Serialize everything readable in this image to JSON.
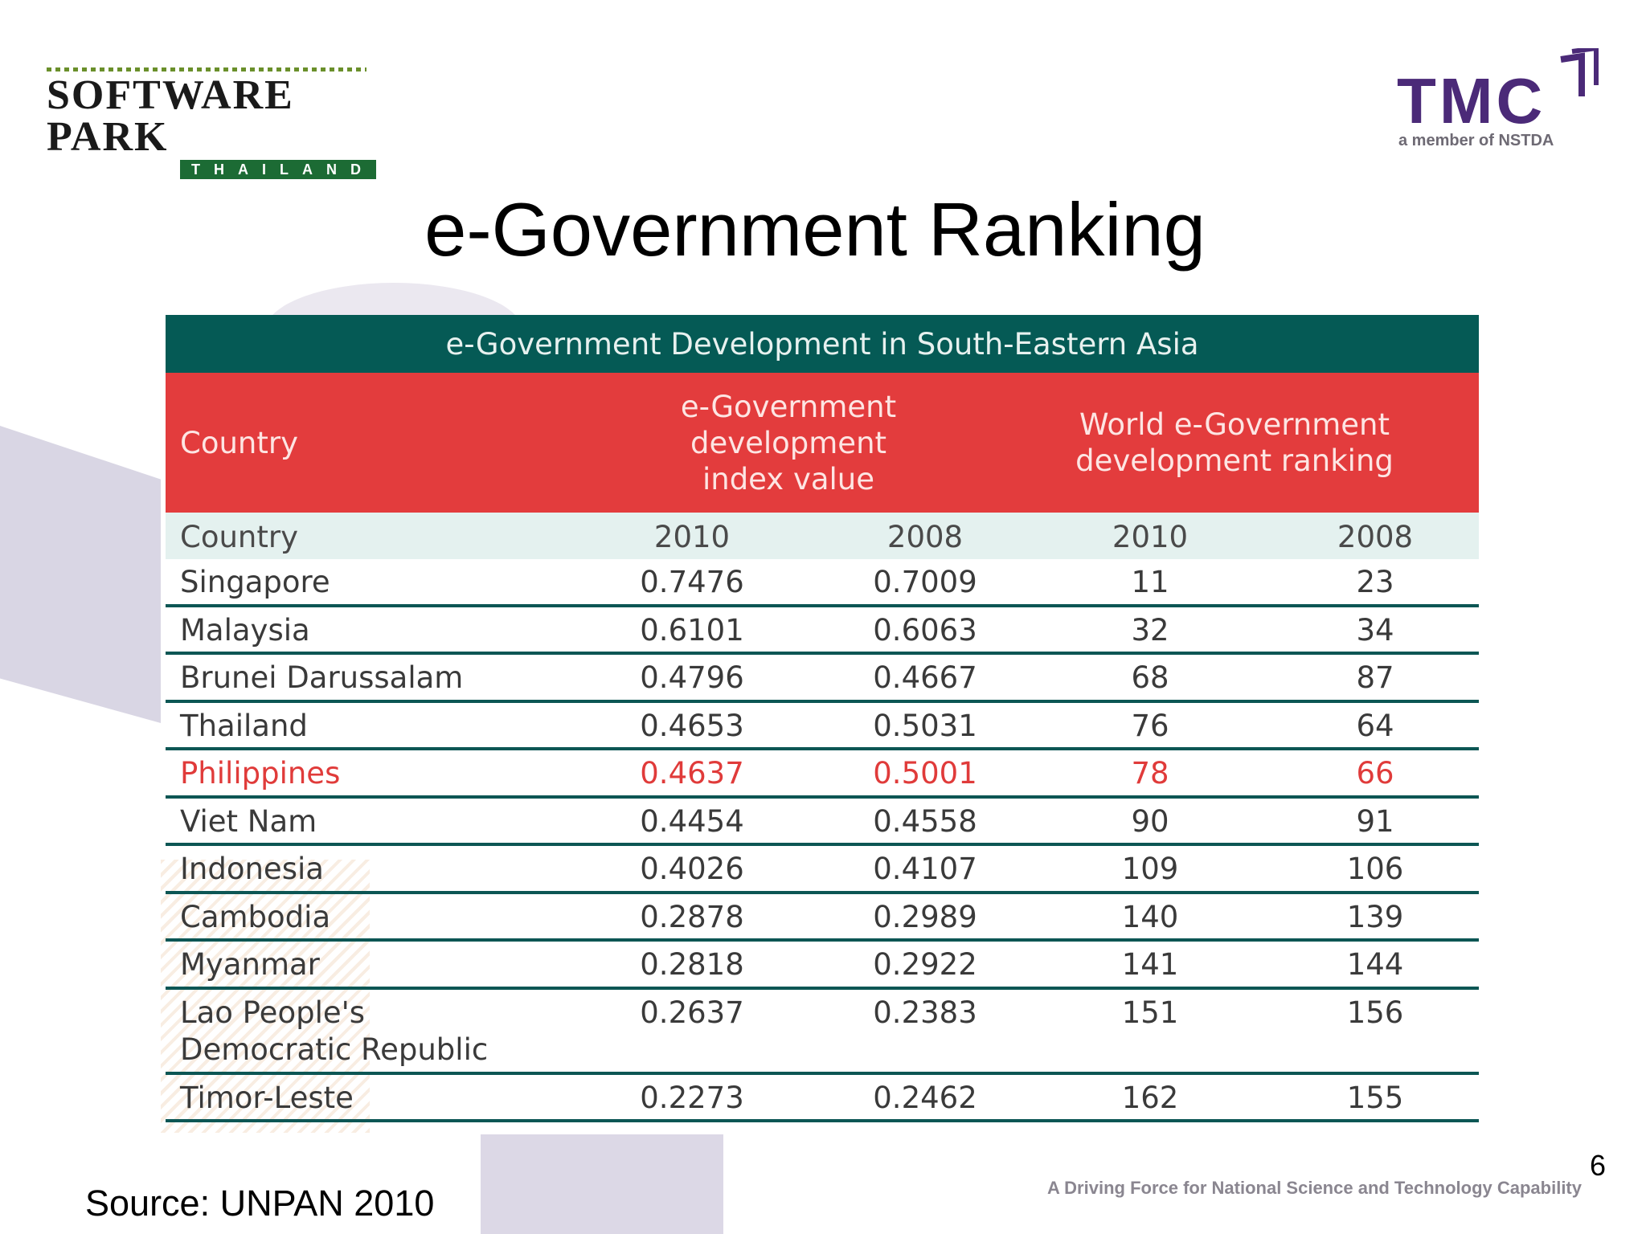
{
  "logos": {
    "software_park": {
      "main": "SOFTWARE PARK",
      "sub": "THAILAND"
    },
    "tmc": {
      "main": "TMC",
      "sub": "a member of NSTDA",
      "color": "#4b2a78"
    }
  },
  "title": "e-Government Ranking",
  "table": {
    "caption": "e-Government Development in South-Eastern Asia",
    "header": {
      "country": "Country",
      "index": "e-Government\ndevelopment\nindex value",
      "ranking": "World e-Government\ndevelopment ranking"
    },
    "subheader": {
      "country": "Country",
      "i2010": "2010",
      "i2008": "2008",
      "r2010": "2010",
      "r2008": "2008"
    },
    "rows": [
      {
        "country": "Singapore",
        "i2010": "0.7476",
        "i2008": "0.7009",
        "r2010": "11",
        "r2008": "23"
      },
      {
        "country": "Malaysia",
        "i2010": "0.6101",
        "i2008": "0.6063",
        "r2010": "32",
        "r2008": "34"
      },
      {
        "country": "Brunei Darussalam",
        "i2010": "0.4796",
        "i2008": "0.4667",
        "r2010": "68",
        "r2008": "87"
      },
      {
        "country": "Thailand",
        "i2010": "0.4653",
        "i2008": "0.5031",
        "r2010": "76",
        "r2008": "64"
      },
      {
        "country": "Philippines",
        "i2010": "0.4637",
        "i2008": "0.5001",
        "r2010": "78",
        "r2008": "66",
        "highlight": true
      },
      {
        "country": "Viet Nam",
        "i2010": "0.4454",
        "i2008": "0.4558",
        "r2010": "90",
        "r2008": "91"
      },
      {
        "country": "Indonesia",
        "i2010": "0.4026",
        "i2008": "0.4107",
        "r2010": "109",
        "r2008": "106"
      },
      {
        "country": "Cambodia",
        "i2010": "0.2878",
        "i2008": "0.2989",
        "r2010": "140",
        "r2008": "139"
      },
      {
        "country": "Myanmar",
        "i2010": "0.2818",
        "i2008": "0.2922",
        "r2010": "141",
        "r2008": "144"
      },
      {
        "country": "Lao People's\nDemocratic Republic",
        "i2010": "0.2637",
        "i2008": "0.2383",
        "r2010": "151",
        "r2008": "156"
      },
      {
        "country": "Timor-Leste",
        "i2010": "0.2273",
        "i2008": "0.2462",
        "r2010": "162",
        "r2008": "155"
      }
    ],
    "colors": {
      "caption_bg": "#055a55",
      "header_bg": "#e33c3d",
      "highlight_text": "#e03b3a"
    }
  },
  "footer": {
    "source": "Source:  UNPAN 2010",
    "tagline": "A Driving Force for National Science and Technology Capability",
    "page_number": "6"
  }
}
